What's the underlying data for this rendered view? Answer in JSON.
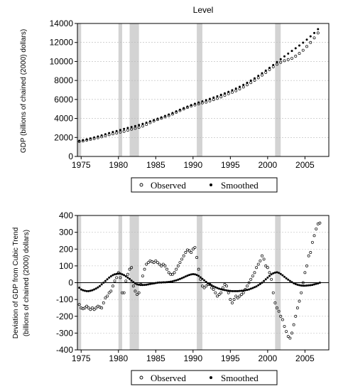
{
  "chart_data": [
    {
      "type": "scatter",
      "title": "Level",
      "xlabel": "",
      "ylabel": "GDP (billions of chained (2000) dollars)",
      "xlim": [
        1974.5,
        2008.2
      ],
      "ylim": [
        0,
        14000
      ],
      "x_ticks": [
        1975,
        1980,
        1985,
        1990,
        1995,
        2000,
        2005
      ],
      "y_ticks": [
        0,
        2000,
        4000,
        6000,
        8000,
        10000,
        12000,
        14000
      ],
      "grid": true,
      "legend": "bottom",
      "shaded_periods": [
        [
          1974.5,
          1975.0
        ],
        [
          1980.0,
          1980.5
        ],
        [
          1981.5,
          1982.75
        ],
        [
          1990.5,
          1991.25
        ],
        [
          2001.0,
          2001.75
        ]
      ],
      "series": [
        {
          "name": "Observed",
          "marker": "open-circle",
          "x": [
            1974.75,
            1975.25,
            1975.75,
            1976.25,
            1976.75,
            1977.25,
            1977.75,
            1978.25,
            1978.75,
            1979.25,
            1979.75,
            1980.25,
            1980.75,
            1981.25,
            1981.75,
            1982.25,
            1982.75,
            1983.25,
            1983.75,
            1984.25,
            1984.75,
            1985.25,
            1985.75,
            1986.25,
            1986.75,
            1987.25,
            1987.75,
            1988.25,
            1988.75,
            1989.25,
            1989.75,
            1990.25,
            1990.75,
            1991.25,
            1991.75,
            1992.25,
            1992.75,
            1993.25,
            1993.75,
            1994.25,
            1994.75,
            1995.25,
            1995.75,
            1996.25,
            1996.75,
            1997.25,
            1997.75,
            1998.25,
            1998.75,
            1999.25,
            1999.75,
            2000.25,
            2000.75,
            2001.25,
            2001.75,
            2002.25,
            2002.75,
            2003.25,
            2003.75,
            2004.25,
            2004.75,
            2005.25,
            2005.75,
            2006.25,
            2006.75
          ],
          "y": [
            1580,
            1630,
            1720,
            1800,
            1880,
            1970,
            2070,
            2180,
            2290,
            2380,
            2470,
            2560,
            2640,
            2760,
            2870,
            2960,
            3060,
            3200,
            3370,
            3560,
            3730,
            3880,
            4020,
            4160,
            4300,
            4460,
            4650,
            4830,
            5000,
            5160,
            5320,
            5420,
            5540,
            5640,
            5720,
            5850,
            5980,
            6110,
            6270,
            6440,
            6610,
            6760,
            6920,
            7110,
            7310,
            7540,
            7770,
            8020,
            8280,
            8560,
            8840,
            9150,
            9440,
            9700,
            9910,
            10080,
            10200,
            10330,
            10560,
            10850,
            11180,
            11580,
            12000,
            12480,
            13000
          ]
        },
        {
          "name": "Smoothed",
          "marker": "filled-dot",
          "x": [
            1974.75,
            1975.25,
            1975.75,
            1976.25,
            1976.75,
            1977.25,
            1977.75,
            1978.25,
            1978.75,
            1979.25,
            1979.75,
            1980.25,
            1980.75,
            1981.25,
            1981.75,
            1982.25,
            1982.75,
            1983.25,
            1983.75,
            1984.25,
            1984.75,
            1985.25,
            1985.75,
            1986.25,
            1986.75,
            1987.25,
            1987.75,
            1988.25,
            1988.75,
            1989.25,
            1989.75,
            1990.25,
            1990.75,
            1991.25,
            1991.75,
            1992.25,
            1992.75,
            1993.25,
            1993.75,
            1994.25,
            1994.75,
            1995.25,
            1995.75,
            1996.25,
            1996.75,
            1997.25,
            1997.75,
            1998.25,
            1998.75,
            1999.25,
            1999.75,
            2000.25,
            2000.75,
            2001.25,
            2001.75,
            2002.25,
            2002.75,
            2003.25,
            2003.75,
            2004.25,
            2004.75,
            2005.25,
            2005.75,
            2006.25,
            2006.75
          ],
          "y": [
            1650,
            1720,
            1810,
            1900,
            2000,
            2110,
            2220,
            2340,
            2460,
            2570,
            2680,
            2790,
            2900,
            3000,
            3100,
            3200,
            3310,
            3430,
            3560,
            3700,
            3840,
            3980,
            4120,
            4270,
            4420,
            4580,
            4750,
            4920,
            5090,
            5250,
            5410,
            5550,
            5680,
            5800,
            5930,
            6060,
            6200,
            6340,
            6490,
            6640,
            6800,
            6970,
            7150,
            7340,
            7540,
            7760,
            7990,
            8230,
            8490,
            8760,
            9040,
            9330,
            9630,
            9940,
            10240,
            10540,
            10830,
            11110,
            11390,
            11680,
            11980,
            12300,
            12640,
            13000,
            13400
          ]
        }
      ]
    },
    {
      "type": "scatter",
      "title": "",
      "xlabel": "",
      "ylabel_lines": [
        "Deviation of GDP from Cubic Trend",
        "(billions of chained (2000) dollars)"
      ],
      "xlim": [
        1974.5,
        2008.2
      ],
      "ylim": [
        -400,
        400
      ],
      "x_ticks": [
        1975,
        1980,
        1985,
        1990,
        1995,
        2000,
        2005
      ],
      "y_ticks": [
        -400,
        -300,
        -200,
        -100,
        0,
        100,
        200,
        300,
        400
      ],
      "grid": true,
      "zero_line": true,
      "legend": "bottom",
      "shaded_periods": [
        [
          1974.5,
          1975.0
        ],
        [
          1980.0,
          1980.5
        ],
        [
          1981.5,
          1982.75
        ],
        [
          1990.5,
          1991.25
        ],
        [
          2001.0,
          2001.75
        ]
      ],
      "series": [
        {
          "name": "Observed",
          "marker": "open-circle",
          "x": [
            1974.75,
            1975.0,
            1975.25,
            1975.5,
            1975.75,
            1976.0,
            1976.25,
            1976.5,
            1976.75,
            1977.0,
            1977.25,
            1977.5,
            1977.75,
            1978.0,
            1978.25,
            1978.5,
            1978.75,
            1979.0,
            1979.25,
            1979.5,
            1979.75,
            1980.0,
            1980.25,
            1980.5,
            1980.75,
            1981.0,
            1981.25,
            1981.5,
            1981.75,
            1982.0,
            1982.25,
            1982.5,
            1982.75,
            1983.0,
            1983.25,
            1983.5,
            1983.75,
            1984.0,
            1984.25,
            1984.5,
            1984.75,
            1985.0,
            1985.25,
            1985.5,
            1985.75,
            1986.0,
            1986.25,
            1986.5,
            1986.75,
            1987.0,
            1987.25,
            1987.5,
            1987.75,
            1988.0,
            1988.25,
            1988.5,
            1988.75,
            1989.0,
            1989.25,
            1989.5,
            1989.75,
            1990.0,
            1990.25,
            1990.5,
            1990.75,
            1991.0,
            1991.25,
            1991.5,
            1991.75,
            1992.0,
            1992.25,
            1992.5,
            1992.75,
            1993.0,
            1993.25,
            1993.5,
            1993.75,
            1994.0,
            1994.25,
            1994.5,
            1994.75,
            1995.0,
            1995.25,
            1995.5,
            1995.75,
            1996.0,
            1996.25,
            1996.5,
            1996.75,
            1997.0,
            1997.25,
            1997.5,
            1997.75,
            1998.0,
            1998.25,
            1998.5,
            1998.75,
            1999.0,
            1999.25,
            1999.5,
            1999.75,
            2000.0,
            2000.25,
            2000.5,
            2000.75,
            2001.0,
            2001.25,
            2001.5,
            2001.75,
            2002.0,
            2002.25,
            2002.5,
            2002.75,
            2003.0,
            2003.25,
            2003.5,
            2003.75,
            2004.0,
            2004.25,
            2004.5,
            2004.75,
            2005.0,
            2005.25,
            2005.5,
            2005.75,
            2006.0,
            2006.25,
            2006.5,
            2006.75,
            2007.0
          ],
          "y": [
            -130,
            -150,
            -155,
            -150,
            -140,
            -150,
            -160,
            -150,
            -160,
            -150,
            -140,
            -145,
            -150,
            -120,
            -90,
            -80,
            -60,
            -50,
            -20,
            10,
            30,
            60,
            30,
            -60,
            -60,
            10,
            50,
            80,
            90,
            -20,
            -50,
            -70,
            -60,
            -10,
            40,
            80,
            110,
            120,
            130,
            125,
            120,
            130,
            120,
            110,
            100,
            110,
            100,
            80,
            60,
            50,
            50,
            60,
            80,
            100,
            120,
            140,
            160,
            180,
            195,
            190,
            180,
            200,
            210,
            150,
            80,
            20,
            -20,
            -30,
            -20,
            -10,
            -10,
            -30,
            -40,
            -60,
            -80,
            -70,
            -60,
            -30,
            -10,
            -20,
            -60,
            -100,
            -120,
            -100,
            -80,
            -90,
            -80,
            -70,
            -60,
            -40,
            -20,
            0,
            20,
            40,
            60,
            90,
            110,
            130,
            160,
            140,
            100,
            90,
            60,
            20,
            -60,
            -120,
            -150,
            -170,
            -200,
            -220,
            -260,
            -290,
            -320,
            -330,
            -300,
            -250,
            -200,
            -150,
            -110,
            -60,
            0,
            60,
            100,
            160,
            180,
            240,
            280,
            320,
            350,
            355
          ]
        },
        {
          "name": "Smoothed",
          "marker": "filled-dot",
          "x": [
            1974.75,
            1975.0,
            1975.25,
            1975.5,
            1975.75,
            1976.0,
            1976.25,
            1976.5,
            1976.75,
            1977.0,
            1977.25,
            1977.5,
            1977.75,
            1978.0,
            1978.25,
            1978.5,
            1978.75,
            1979.0,
            1979.25,
            1979.5,
            1979.75,
            1980.0,
            1980.25,
            1980.5,
            1980.75,
            1981.0,
            1981.25,
            1981.5,
            1981.75,
            1982.0,
            1982.25,
            1982.5,
            1982.75,
            1983.0,
            1983.25,
            1983.5,
            1983.75,
            1984.0,
            1984.25,
            1984.5,
            1984.75,
            1985.0,
            1985.25,
            1985.5,
            1985.75,
            1986.0,
            1986.25,
            1986.5,
            1986.75,
            1987.0,
            1987.25,
            1987.5,
            1987.75,
            1988.0,
            1988.25,
            1988.5,
            1988.75,
            1989.0,
            1989.25,
            1989.5,
            1989.75,
            1990.0,
            1990.25,
            1990.5,
            1990.75,
            1991.0,
            1991.25,
            1991.5,
            1991.75,
            1992.0,
            1992.25,
            1992.5,
            1992.75,
            1993.0,
            1993.25,
            1993.5,
            1993.75,
            1994.0,
            1994.25,
            1994.5,
            1994.75,
            1995.0,
            1995.25,
            1995.5,
            1995.75,
            1996.0,
            1996.25,
            1996.5,
            1996.75,
            1997.0,
            1997.25,
            1997.5,
            1997.75,
            1998.0,
            1998.25,
            1998.5,
            1998.75,
            1999.0,
            1999.25,
            1999.5,
            1999.75,
            2000.0,
            2000.25,
            2000.5,
            2000.75,
            2001.0,
            2001.25,
            2001.5,
            2001.75,
            2002.0,
            2002.25,
            2002.5,
            2002.75,
            2003.0,
            2003.25,
            2003.5,
            2003.75,
            2004.0,
            2004.25,
            2004.5,
            2004.75,
            2005.0,
            2005.25,
            2005.5,
            2005.75,
            2006.0,
            2006.25,
            2006.5,
            2006.75,
            2007.0
          ],
          "y": [
            -30,
            -40,
            -45,
            -48,
            -50,
            -50,
            -48,
            -45,
            -40,
            -35,
            -28,
            -20,
            -10,
            0,
            10,
            20,
            30,
            38,
            45,
            50,
            52,
            54,
            54,
            50,
            45,
            38,
            30,
            22,
            12,
            3,
            -5,
            -10,
            -12,
            -14,
            -14,
            -13,
            -12,
            -10,
            -8,
            -6,
            -4,
            -2,
            0,
            1,
            1,
            2,
            2,
            3,
            4,
            6,
            8,
            11,
            14,
            18,
            22,
            27,
            32,
            37,
            42,
            46,
            49,
            51,
            50,
            46,
            40,
            32,
            23,
            14,
            5,
            -3,
            -10,
            -16,
            -22,
            -27,
            -32,
            -36,
            -39,
            -42,
            -44,
            -46,
            -48,
            -49,
            -50,
            -50,
            -50,
            -50,
            -49,
            -48,
            -47,
            -45,
            -43,
            -40,
            -36,
            -32,
            -27,
            -22,
            -15,
            -8,
            0,
            10,
            20,
            30,
            40,
            50,
            56,
            60,
            62,
            58,
            52,
            44,
            35,
            26,
            18,
            10,
            3,
            -3,
            -8,
            -12,
            -15,
            -17,
            -18,
            -18,
            -17,
            -16,
            -15,
            -13,
            -10,
            -7,
            -4,
            0
          ]
        }
      ]
    }
  ],
  "legends": {
    "top": {
      "observed_label": "Observed",
      "smoothed_label": "Smoothed"
    },
    "bottom": {
      "observed_label": "Observed",
      "smoothed_label": "Smoothed"
    }
  }
}
